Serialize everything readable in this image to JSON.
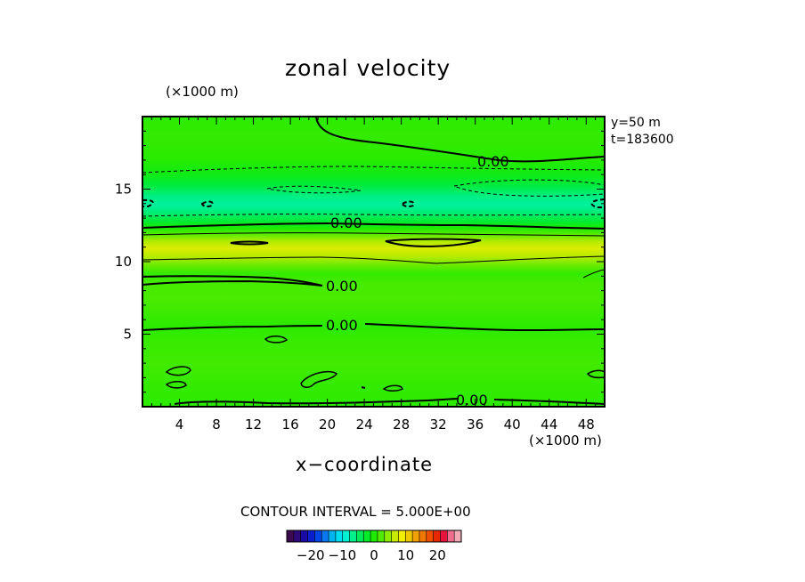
{
  "chart_data": {
    "type": "heatmap",
    "title": "zonal velocity",
    "xlabel": "x−coordinate",
    "x_unit_label": "(×1000 m)",
    "y_unit_label": "(×1000 m)",
    "xlim": [
      0,
      50
    ],
    "ylim": [
      0,
      20
    ],
    "x_ticks": [
      "4",
      "8",
      "12",
      "16",
      "20",
      "24",
      "28",
      "32",
      "36",
      "40",
      "44",
      "48"
    ],
    "y_ticks": [
      "5",
      "10",
      "15"
    ],
    "x_tick_values": [
      4,
      8,
      12,
      16,
      20,
      24,
      28,
      32,
      36,
      40,
      44,
      48
    ],
    "y_tick_values": [
      5,
      10,
      15
    ],
    "annotations": [
      "y=50  m",
      "t=183600"
    ],
    "contour_interval_text": "CONTOUR INTERVAL = 5.000E+00",
    "contour_labels": [
      "0.00",
      "0.00",
      "0.00",
      "0.00",
      "0.00"
    ],
    "colorbar": {
      "tick_labels": [
        "−20",
        "−10",
        "0",
        "10",
        "20"
      ],
      "tick_values": [
        -20,
        -10,
        0,
        10,
        20
      ],
      "range": [
        -27.5,
        27.5
      ],
      "colors": [
        "#3c0a50",
        "#2e0a78",
        "#1c0aa5",
        "#0a1ecd",
        "#0046e6",
        "#0a78f0",
        "#00b4f0",
        "#00dcf0",
        "#00f0d2",
        "#00f08c",
        "#00eb5a",
        "#00eb28",
        "#1eeb00",
        "#50eb00",
        "#8ceb00",
        "#c8eb00",
        "#f0f000",
        "#f0c800",
        "#f0a000",
        "#f07800",
        "#f05000",
        "#e62800",
        "#e6143c",
        "#f06e8c",
        "#f0aab4"
      ]
    },
    "field_bands": [
      {
        "y": 0.0,
        "value": 0.6
      },
      {
        "y": 1.5,
        "value": 1.0
      },
      {
        "y": 3.0,
        "value": 1.6
      },
      {
        "y": 4.5,
        "value": 1.2
      },
      {
        "y": 5.5,
        "value": 0.6
      },
      {
        "y": 6.5,
        "value": 1.4
      },
      {
        "y": 7.5,
        "value": 2.0
      },
      {
        "y": 8.5,
        "value": 1.8
      },
      {
        "y": 9.2,
        "value": 1.0
      },
      {
        "y": 9.8,
        "value": 3.5
      },
      {
        "y": 10.3,
        "value": 6.0
      },
      {
        "y": 10.9,
        "value": 8.0
      },
      {
        "y": 11.4,
        "value": 6.0
      },
      {
        "y": 11.9,
        "value": 2.5
      },
      {
        "y": 12.3,
        "value": 0.0
      },
      {
        "y": 12.8,
        "value": -3.0
      },
      {
        "y": 13.3,
        "value": -5.5
      },
      {
        "y": 13.9,
        "value": -7.5
      },
      {
        "y": 14.5,
        "value": -6.5
      },
      {
        "y": 15.2,
        "value": -3.5
      },
      {
        "y": 16.0,
        "value": -1.2
      },
      {
        "y": 17.0,
        "value": 0.4
      },
      {
        "y": 18.5,
        "value": 1.0
      },
      {
        "y": 20.0,
        "value": 0.6
      }
    ]
  }
}
